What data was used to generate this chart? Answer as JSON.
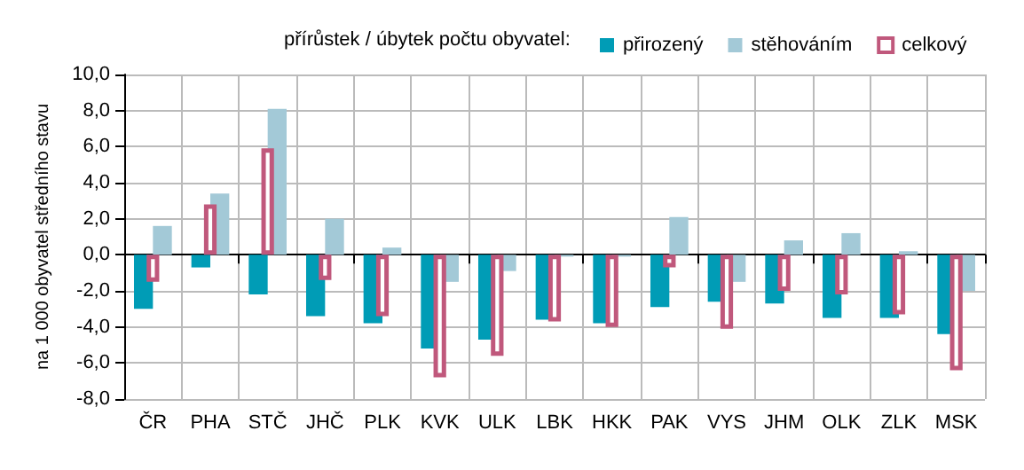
{
  "chart_data": {
    "type": "bar",
    "legend_title": "přírůstek / úbytek počtu obyvatel:",
    "ylabel": "na 1 000 obyvatel středního stavu",
    "categories": [
      "ČR",
      "PHA",
      "STČ",
      "JHČ",
      "PLK",
      "KVK",
      "ULK",
      "LBK",
      "HKK",
      "PAK",
      "VYS",
      "JHM",
      "OLK",
      "ZLK",
      "MSK"
    ],
    "series": [
      {
        "name": "přirozený",
        "color": "#009cb6",
        "values": [
          -3.0,
          -0.7,
          -2.2,
          -3.4,
          -3.8,
          -5.2,
          -4.7,
          -3.6,
          -3.8,
          -2.9,
          -2.6,
          -2.7,
          -3.5,
          -3.5,
          -4.4
        ]
      },
      {
        "name": "stěhováním",
        "color": "#a3c9d7",
        "values": [
          1.6,
          3.4,
          8.1,
          2.0,
          0.4,
          -1.5,
          -0.9,
          -0.1,
          -0.1,
          2.1,
          -1.5,
          0.8,
          1.2,
          0.2,
          -2.0
        ]
      },
      {
        "name": "celkový",
        "color": "#c0587c",
        "values": [
          -1.5,
          2.8,
          5.9,
          -1.4,
          -3.4,
          -6.8,
          -5.6,
          -3.7,
          -4.0,
          -0.7,
          -4.1,
          -2.0,
          -2.2,
          -3.3,
          -6.4
        ]
      }
    ],
    "ylim": [
      -8,
      10
    ],
    "yticks": [
      {
        "value": -8,
        "label": "-8,0"
      },
      {
        "value": -6,
        "label": "-6,0"
      },
      {
        "value": -4,
        "label": "-4,0"
      },
      {
        "value": -2,
        "label": "-2,0"
      },
      {
        "value": 0,
        "label": "0,0"
      },
      {
        "value": 2,
        "label": "2,0"
      },
      {
        "value": 4,
        "label": "4,0"
      },
      {
        "value": 6,
        "label": "6,0"
      },
      {
        "value": 8,
        "label": "8,0"
      },
      {
        "value": 10,
        "label": "10,0"
      }
    ],
    "grid": true,
    "legend": "top"
  }
}
